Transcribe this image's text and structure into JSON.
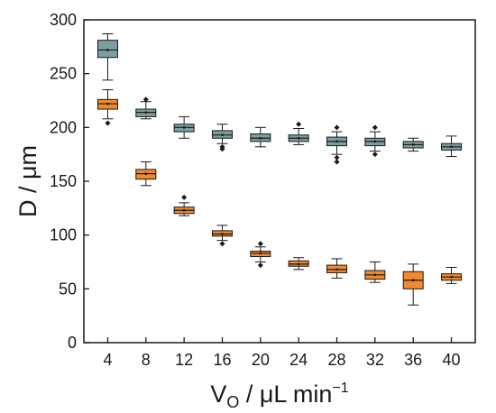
{
  "chart_data": {
    "type": "box",
    "title": "",
    "xlabel": {
      "main": "V",
      "sub": "O",
      "rest": " / μL min",
      "sup": "−1"
    },
    "ylabel": "D / μm",
    "categories": [
      "4",
      "8",
      "12",
      "16",
      "20",
      "24",
      "28",
      "32",
      "36",
      "40"
    ],
    "x": [
      4,
      8,
      12,
      16,
      20,
      24,
      28,
      32,
      36,
      40
    ],
    "xlim": [
      1.5,
      42.5
    ],
    "ylim": [
      0,
      300
    ],
    "yticks": [
      0,
      50,
      100,
      150,
      200,
      250,
      300
    ],
    "grid": false,
    "legend": "none",
    "series": [
      {
        "color": "#7b9fa0",
        "boxes": [
          {
            "x": 4,
            "min": 244,
            "q1": 265,
            "median": 272,
            "mean": 272,
            "q3": 281,
            "max": 287,
            "outliers": []
          },
          {
            "x": 8,
            "min": 208,
            "q1": 210,
            "median": 214,
            "mean": 214,
            "q3": 217,
            "max": 224,
            "outliers": [
              226
            ]
          },
          {
            "x": 12,
            "min": 190,
            "q1": 196,
            "median": 200,
            "mean": 200,
            "q3": 203,
            "max": 210,
            "outliers": []
          },
          {
            "x": 16,
            "min": 185,
            "q1": 190,
            "median": 193,
            "mean": 193,
            "q3": 197,
            "max": 203,
            "outliers": [
              182,
              180
            ]
          },
          {
            "x": 20,
            "min": 182,
            "q1": 187,
            "median": 190,
            "mean": 190,
            "q3": 194,
            "max": 200,
            "outliers": []
          },
          {
            "x": 24,
            "min": 184,
            "q1": 187,
            "median": 190,
            "mean": 190,
            "q3": 193,
            "max": 199,
            "outliers": [
              203
            ]
          },
          {
            "x": 28,
            "min": 175,
            "q1": 183,
            "median": 187,
            "mean": 187,
            "q3": 191,
            "max": 196,
            "outliers": [
              200,
              172,
              168
            ]
          },
          {
            "x": 32,
            "min": 178,
            "q1": 183,
            "median": 187,
            "mean": 187,
            "q3": 190,
            "max": 196,
            "outliers": [
              200,
              175
            ]
          },
          {
            "x": 36,
            "min": 178,
            "q1": 181,
            "median": 184,
            "mean": 184,
            "q3": 187,
            "max": 190,
            "outliers": []
          },
          {
            "x": 40,
            "min": 173,
            "q1": 179,
            "median": 182,
            "mean": 182,
            "q3": 185,
            "max": 192,
            "outliers": []
          }
        ]
      },
      {
        "color": "#f08a2c",
        "boxes": [
          {
            "x": 4,
            "min": 208,
            "q1": 217,
            "median": 222,
            "mean": 222,
            "q3": 226,
            "max": 235,
            "outliers": [
              204
            ]
          },
          {
            "x": 8,
            "min": 146,
            "q1": 152,
            "median": 157,
            "mean": 157,
            "q3": 161,
            "max": 168,
            "outliers": []
          },
          {
            "x": 12,
            "min": 118,
            "q1": 120,
            "median": 123,
            "mean": 123,
            "q3": 126,
            "max": 130,
            "outliers": [
              135
            ]
          },
          {
            "x": 16,
            "min": 95,
            "q1": 99,
            "median": 101,
            "mean": 101,
            "q3": 104,
            "max": 109,
            "outliers": [
              92
            ]
          },
          {
            "x": 20,
            "min": 75,
            "q1": 80,
            "median": 83,
            "mean": 83,
            "q3": 85,
            "max": 89,
            "outliers": [
              92,
              72
            ]
          },
          {
            "x": 24,
            "min": 68,
            "q1": 71,
            "median": 73,
            "mean": 73,
            "q3": 76,
            "max": 79,
            "outliers": []
          },
          {
            "x": 28,
            "min": 60,
            "q1": 65,
            "median": 68,
            "mean": 68,
            "q3": 72,
            "max": 78,
            "outliers": []
          },
          {
            "x": 32,
            "min": 56,
            "q1": 59,
            "median": 63,
            "mean": 63,
            "q3": 67,
            "max": 75,
            "outliers": []
          },
          {
            "x": 36,
            "min": 35,
            "q1": 50,
            "median": 58,
            "mean": 58,
            "q3": 66,
            "max": 73,
            "outliers": []
          },
          {
            "x": 40,
            "min": 55,
            "q1": 58,
            "median": 61,
            "mean": 61,
            "q3": 64,
            "max": 70,
            "outliers": []
          }
        ]
      }
    ]
  }
}
